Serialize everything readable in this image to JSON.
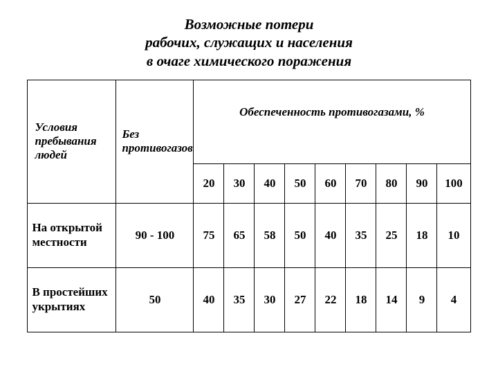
{
  "title": {
    "line1": "Возможные потери",
    "line2": "рабочих, служащих и населения",
    "line3": "в очаге химического поражения"
  },
  "headers": {
    "conditions": "Условия пребывания людей",
    "no_mask": "Без противогазов",
    "availability": "Обеспеченность противогазами, %"
  },
  "pct_columns": [
    "20",
    "30",
    "40",
    "50",
    "60",
    "70",
    "80",
    "90",
    "100"
  ],
  "rows": [
    {
      "label": "На открытой местности",
      "no_mask": "90 - 100",
      "values": [
        "75",
        "65",
        "58",
        "50",
        "40",
        "35",
        "25",
        "18",
        "10"
      ]
    },
    {
      "label": "В простейших укрытиях",
      "no_mask": "50",
      "values": [
        "40",
        "35",
        "30",
        "27",
        "22",
        "18",
        "14",
        "9",
        "4"
      ]
    }
  ],
  "colors": {
    "background": "#ffffff",
    "text": "#000000",
    "border": "#000000"
  },
  "fonts": {
    "title_size_pt": 16,
    "header_size_pt": 13,
    "cell_size_pt": 13
  }
}
